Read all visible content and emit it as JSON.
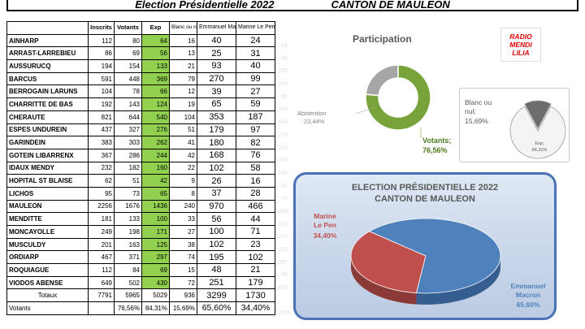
{
  "header": {
    "title_left": "Election Présidentielle 2022",
    "title_right": "CANTON DE MAULEON"
  },
  "table": {
    "headers": {
      "inscrits": "Inscrits",
      "votants": "Votants",
      "exp": "Exp",
      "blanc": "Blanc ou nul",
      "macron": "Emmanuel Macron",
      "lepen": "Marine Le Pen"
    },
    "rows": [
      {
        "name": "AINHARP",
        "inscrits": "112",
        "votants": "80",
        "exp": "64",
        "blanc": "16",
        "macron": "40",
        "lepen": "24"
      },
      {
        "name": "ARRAST-LARREBIEU",
        "inscrits": "86",
        "votants": "69",
        "exp": "56",
        "blanc": "13",
        "macron": "25",
        "lepen": "31"
      },
      {
        "name": "AUSSURUCQ",
        "inscrits": "194",
        "votants": "154",
        "exp": "133",
        "blanc": "21",
        "macron": "93",
        "lepen": "40"
      },
      {
        "name": "BARCUS",
        "inscrits": "591",
        "votants": "448",
        "exp": "369",
        "blanc": "79",
        "macron": "270",
        "lepen": "99"
      },
      {
        "name": "BERROGAIN LARUNS",
        "inscrits": "104",
        "votants": "78",
        "exp": "66",
        "blanc": "12",
        "macron": "39",
        "lepen": "27"
      },
      {
        "name": "CHARRITTE DE BAS",
        "inscrits": "192",
        "votants": "143",
        "exp": "124",
        "blanc": "19",
        "macron": "65",
        "lepen": "59"
      },
      {
        "name": "CHERAUTE",
        "inscrits": "821",
        "votants": "644",
        "exp": "540",
        "blanc": "104",
        "macron": "353",
        "lepen": "187"
      },
      {
        "name": "ESPES UNDUREIN",
        "inscrits": "437",
        "votants": "327",
        "exp": "276",
        "blanc": "51",
        "macron": "179",
        "lepen": "97"
      },
      {
        "name": "GARINDEIN",
        "inscrits": "383",
        "votants": "303",
        "exp": "262",
        "blanc": "41",
        "macron": "180",
        "lepen": "82"
      },
      {
        "name": "GOTEIN LIBARRENX",
        "inscrits": "367",
        "votants": "286",
        "exp": "244",
        "blanc": "42",
        "macron": "168",
        "lepen": "76"
      },
      {
        "name": "IDAUX MENDY",
        "inscrits": "232",
        "votants": "182",
        "exp": "160",
        "blanc": "22",
        "macron": "102",
        "lepen": "58"
      },
      {
        "name": "HOPITAL ST BLAISE",
        "inscrits": "62",
        "votants": "51",
        "exp": "42",
        "blanc": "9",
        "macron": "26",
        "lepen": "16"
      },
      {
        "name": "LICHOS",
        "inscrits": "95",
        "votants": "73",
        "exp": "65",
        "blanc": "8",
        "macron": "37",
        "lepen": "28"
      },
      {
        "name": "MAULEON",
        "inscrits": "2256",
        "votants": "1676",
        "exp": "1436",
        "blanc": "240",
        "macron": "970",
        "lepen": "466"
      },
      {
        "name": "MENDITTE",
        "inscrits": "181",
        "votants": "133",
        "exp": "100",
        "blanc": "33",
        "macron": "56",
        "lepen": "44"
      },
      {
        "name": "MONCAYOLLE",
        "inscrits": "249",
        "votants": "198",
        "exp": "171",
        "blanc": "27",
        "macron": "100",
        "lepen": "71"
      },
      {
        "name": "MUSCULDY",
        "inscrits": "201",
        "votants": "163",
        "exp": "125",
        "blanc": "38",
        "macron": "102",
        "lepen": "23"
      },
      {
        "name": "ORDIARP",
        "inscrits": "467",
        "votants": "371",
        "exp": "297",
        "blanc": "74",
        "macron": "195",
        "lepen": "102"
      },
      {
        "name": "ROQUIAGUE",
        "inscrits": "112",
        "votants": "84",
        "exp": "69",
        "blanc": "15",
        "macron": "48",
        "lepen": "21"
      },
      {
        "name": "VIODOS ABENSE",
        "inscrits": "649",
        "votants": "502",
        "exp": "430",
        "blanc": "72",
        "macron": "251",
        "lepen": "179"
      }
    ],
    "totals": {
      "label": "Totaux",
      "inscrits": "7791",
      "votants": "5965",
      "exp": "5029",
      "blanc": "936",
      "macron": "3299",
      "lepen": "1730"
    },
    "votants_row": {
      "label": "Votants",
      "votants": "76,56%",
      "exp": "84,31%",
      "blanc": "15,69%",
      "macron": "65,60%",
      "lepen": "34,40%"
    },
    "ghost_values": [
      "64",
      "56",
      "133",
      "369",
      "66",
      "124",
      "540",
      "276",
      "262",
      "244",
      "160",
      "42",
      "65",
      "1436",
      "100",
      "171",
      "125",
      "297",
      "69",
      "430"
    ],
    "ghost_bottom": "100%"
  },
  "logo": {
    "line1": "RADIO",
    "line2": "MENDI",
    "line3": "LILIA"
  },
  "chart_data": [
    {
      "type": "pie",
      "title": "Participation",
      "categories": [
        "Abstention",
        "Votants"
      ],
      "values": [
        23.44,
        76.56
      ],
      "labels": [
        "Abstention\n23,44%",
        "Votants;\n76,56%"
      ],
      "colors": [
        "#a6a6a6",
        "#77a33a"
      ],
      "style": "doughnut"
    },
    {
      "type": "pie",
      "title": "",
      "categories": [
        "Blanc ou nul",
        "Exp"
      ],
      "values": [
        15.69,
        84.31
      ],
      "labels": [
        "Blanc ou nul; 15,69%",
        "Exp; 84,31%"
      ],
      "colors": [
        "#7f7f7f",
        "#f2f2f2"
      ]
    },
    {
      "type": "pie",
      "title": "ELECTION PRÉSIDENTIELLE 2022 CANTON DE MAULEON",
      "categories": [
        "Marine Le Pen",
        "Emmanuel Macron"
      ],
      "values": [
        34.4,
        65.6
      ],
      "labels": [
        "Marine Le Pen 34,40%",
        "Emmanuel Macron 65,60%"
      ],
      "colors": [
        "#c0504d",
        "#4f81bd"
      ]
    }
  ],
  "charts_text": {
    "participation_title": "Participation",
    "abstention_name": "Abstention",
    "abstention_pct": "23,44%",
    "votants_name": "Votants;",
    "votants_pct": "76,56%",
    "blanc_name1": "Blanc ou",
    "blanc_name2": "nul;",
    "blanc_pct": "15,69%",
    "exp_name": "Exp;",
    "exp_pct": "84,31%",
    "election_title1": "ELECTION PRÉSIDENTIELLE 2022",
    "election_title2": "CANTON DE MAULEON",
    "lepen_name1": "Marine",
    "lepen_name2": "Le Pen",
    "lepen_pct": "34,40%",
    "macron_name1": "Emmanuel",
    "macron_name2": "Macron",
    "macron_pct": "65,60%"
  }
}
